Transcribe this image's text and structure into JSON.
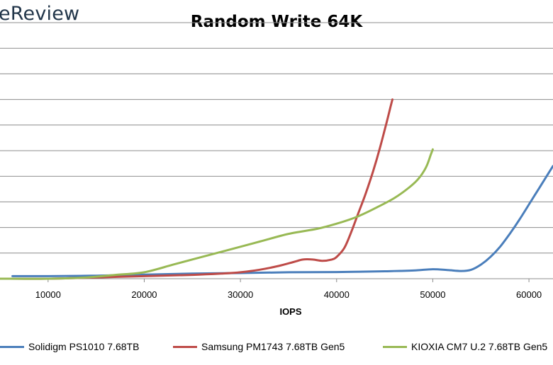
{
  "watermark": "eReview",
  "chart_data": {
    "type": "line",
    "title": "Random Write 64K",
    "xlabel": "IOPS",
    "ylabel": "",
    "xlim": [
      5000,
      62500
    ],
    "ylim": [
      0,
      10
    ],
    "x_ticks": [
      10000,
      20000,
      30000,
      40000,
      50000,
      60000
    ],
    "x_tick_labels": [
      "10000",
      "20000",
      "30000",
      "40000",
      "50000",
      "60000"
    ],
    "y_gridlines": [
      1,
      2,
      3,
      4,
      5,
      6,
      7,
      8,
      9,
      10
    ],
    "grid": true,
    "legend": "bottom",
    "series": [
      {
        "name": "Solidigm PS1010 7.68TB",
        "color": "#4a7ebb",
        "points": [
          [
            6300,
            0.1
          ],
          [
            10000,
            0.1
          ],
          [
            15000,
            0.12
          ],
          [
            20000,
            0.16
          ],
          [
            25000,
            0.2
          ],
          [
            30000,
            0.22
          ],
          [
            35000,
            0.25
          ],
          [
            40000,
            0.26
          ],
          [
            45000,
            0.29
          ],
          [
            48000,
            0.32
          ],
          [
            50000,
            0.37
          ],
          [
            51500,
            0.34
          ],
          [
            53000,
            0.3
          ],
          [
            54000,
            0.35
          ],
          [
            55000,
            0.55
          ],
          [
            56000,
            0.85
          ],
          [
            57000,
            1.25
          ],
          [
            58000,
            1.75
          ],
          [
            59000,
            2.3
          ],
          [
            60000,
            2.9
          ],
          [
            61000,
            3.5
          ],
          [
            62000,
            4.1
          ],
          [
            62500,
            4.4
          ]
        ]
      },
      {
        "name": "Samsung PM1743 7.68TB Gen5",
        "color": "#be4b48",
        "points": [
          [
            5000,
            0.0
          ],
          [
            10000,
            0.0
          ],
          [
            15000,
            0.05
          ],
          [
            20000,
            0.1
          ],
          [
            25000,
            0.15
          ],
          [
            28000,
            0.2
          ],
          [
            30000,
            0.25
          ],
          [
            32000,
            0.35
          ],
          [
            34000,
            0.5
          ],
          [
            35500,
            0.65
          ],
          [
            36500,
            0.75
          ],
          [
            37500,
            0.75
          ],
          [
            38500,
            0.7
          ],
          [
            39500,
            0.75
          ],
          [
            40000,
            0.85
          ],
          [
            40800,
            1.2
          ],
          [
            41500,
            1.8
          ],
          [
            42200,
            2.5
          ],
          [
            43000,
            3.3
          ],
          [
            43800,
            4.2
          ],
          [
            44500,
            5.1
          ],
          [
            45200,
            6.1
          ],
          [
            45600,
            6.7
          ],
          [
            45800,
            7.0
          ]
        ]
      },
      {
        "name": "KIOXIA CM7 U.2 7.68TB Gen5",
        "color": "#98b954",
        "points": [
          [
            5000,
            0.0
          ],
          [
            10000,
            0.0
          ],
          [
            14000,
            0.05
          ],
          [
            17000,
            0.15
          ],
          [
            20000,
            0.25
          ],
          [
            23000,
            0.55
          ],
          [
            26000,
            0.85
          ],
          [
            29000,
            1.15
          ],
          [
            32000,
            1.45
          ],
          [
            35000,
            1.75
          ],
          [
            38000,
            1.95
          ],
          [
            40000,
            2.15
          ],
          [
            42000,
            2.4
          ],
          [
            44000,
            2.75
          ],
          [
            46000,
            3.15
          ],
          [
            47500,
            3.55
          ],
          [
            48500,
            3.9
          ],
          [
            49300,
            4.35
          ],
          [
            49800,
            4.85
          ],
          [
            50000,
            5.05
          ]
        ]
      }
    ]
  }
}
